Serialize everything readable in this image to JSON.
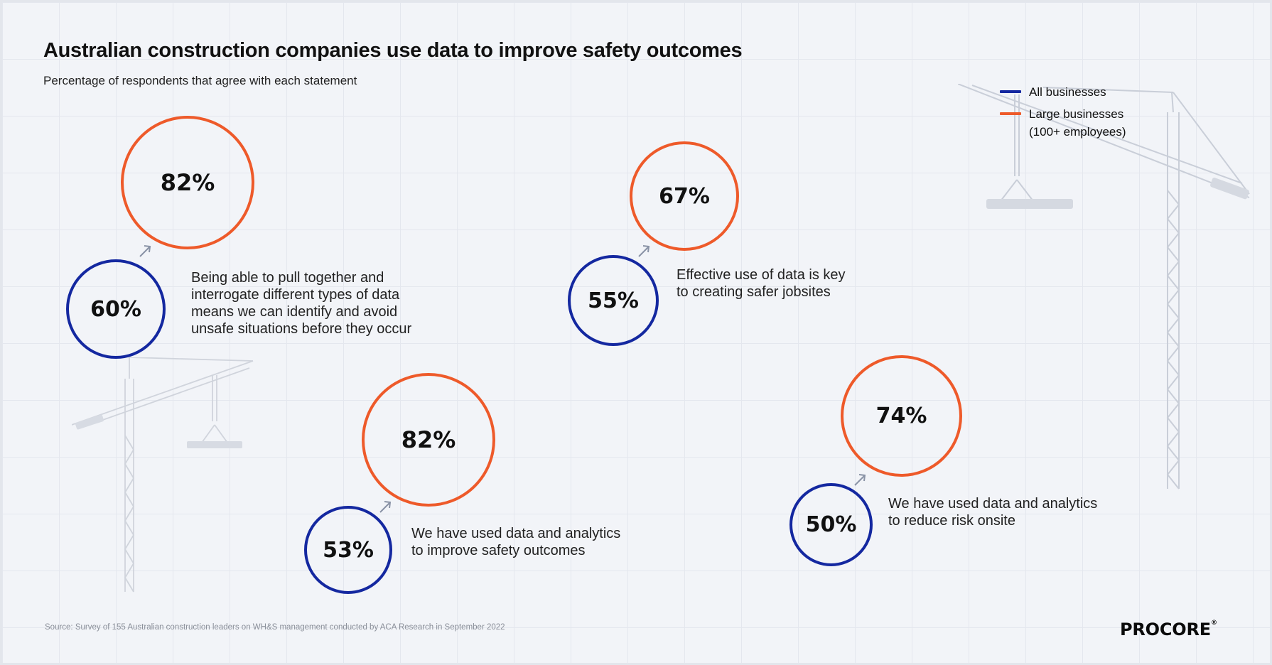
{
  "title": "Australian construction companies use data to improve safety outcomes",
  "subtitle": "Percentage of respondents that agree with each statement",
  "legend": {
    "all": {
      "label": "All businesses",
      "color": "#1428a0"
    },
    "large": {
      "label_line1": "Large businesses",
      "label_line2": "(100+ employees)",
      "color": "#ee5a2a"
    }
  },
  "source": "Source: Survey of 155 Australian construction leaders on WH&S management conducted by ACA Research in September 2022",
  "logo": "PROCORE",
  "icons": {
    "crane": "crane-illustration-icon",
    "arrow": "arrow-up-right-icon"
  },
  "chart_data": {
    "type": "bubble",
    "series": [
      {
        "name": "All businesses",
        "color": "#1428a0",
        "values": [
          60,
          55,
          53,
          50
        ]
      },
      {
        "name": "Large businesses (100+ employees)",
        "color": "#ee5a2a",
        "values": [
          82,
          67,
          82,
          74
        ]
      }
    ],
    "statements": [
      {
        "text": "Being able to pull together and\ninterrogate different types of data\nmeans we can identify and avoid\nunsafe situations before they occur",
        "all_label": "60%",
        "large_label": "82%"
      },
      {
        "text": "Effective use of data is key\nto creating safer jobsites",
        "all_label": "55%",
        "large_label": "67%"
      },
      {
        "text": "We have used data and analytics\nto improve safety outcomes",
        "all_label": "53%",
        "large_label": "82%"
      },
      {
        "text": "We have used data and analytics\nto reduce risk onsite",
        "all_label": "50%",
        "large_label": "74%"
      }
    ]
  }
}
